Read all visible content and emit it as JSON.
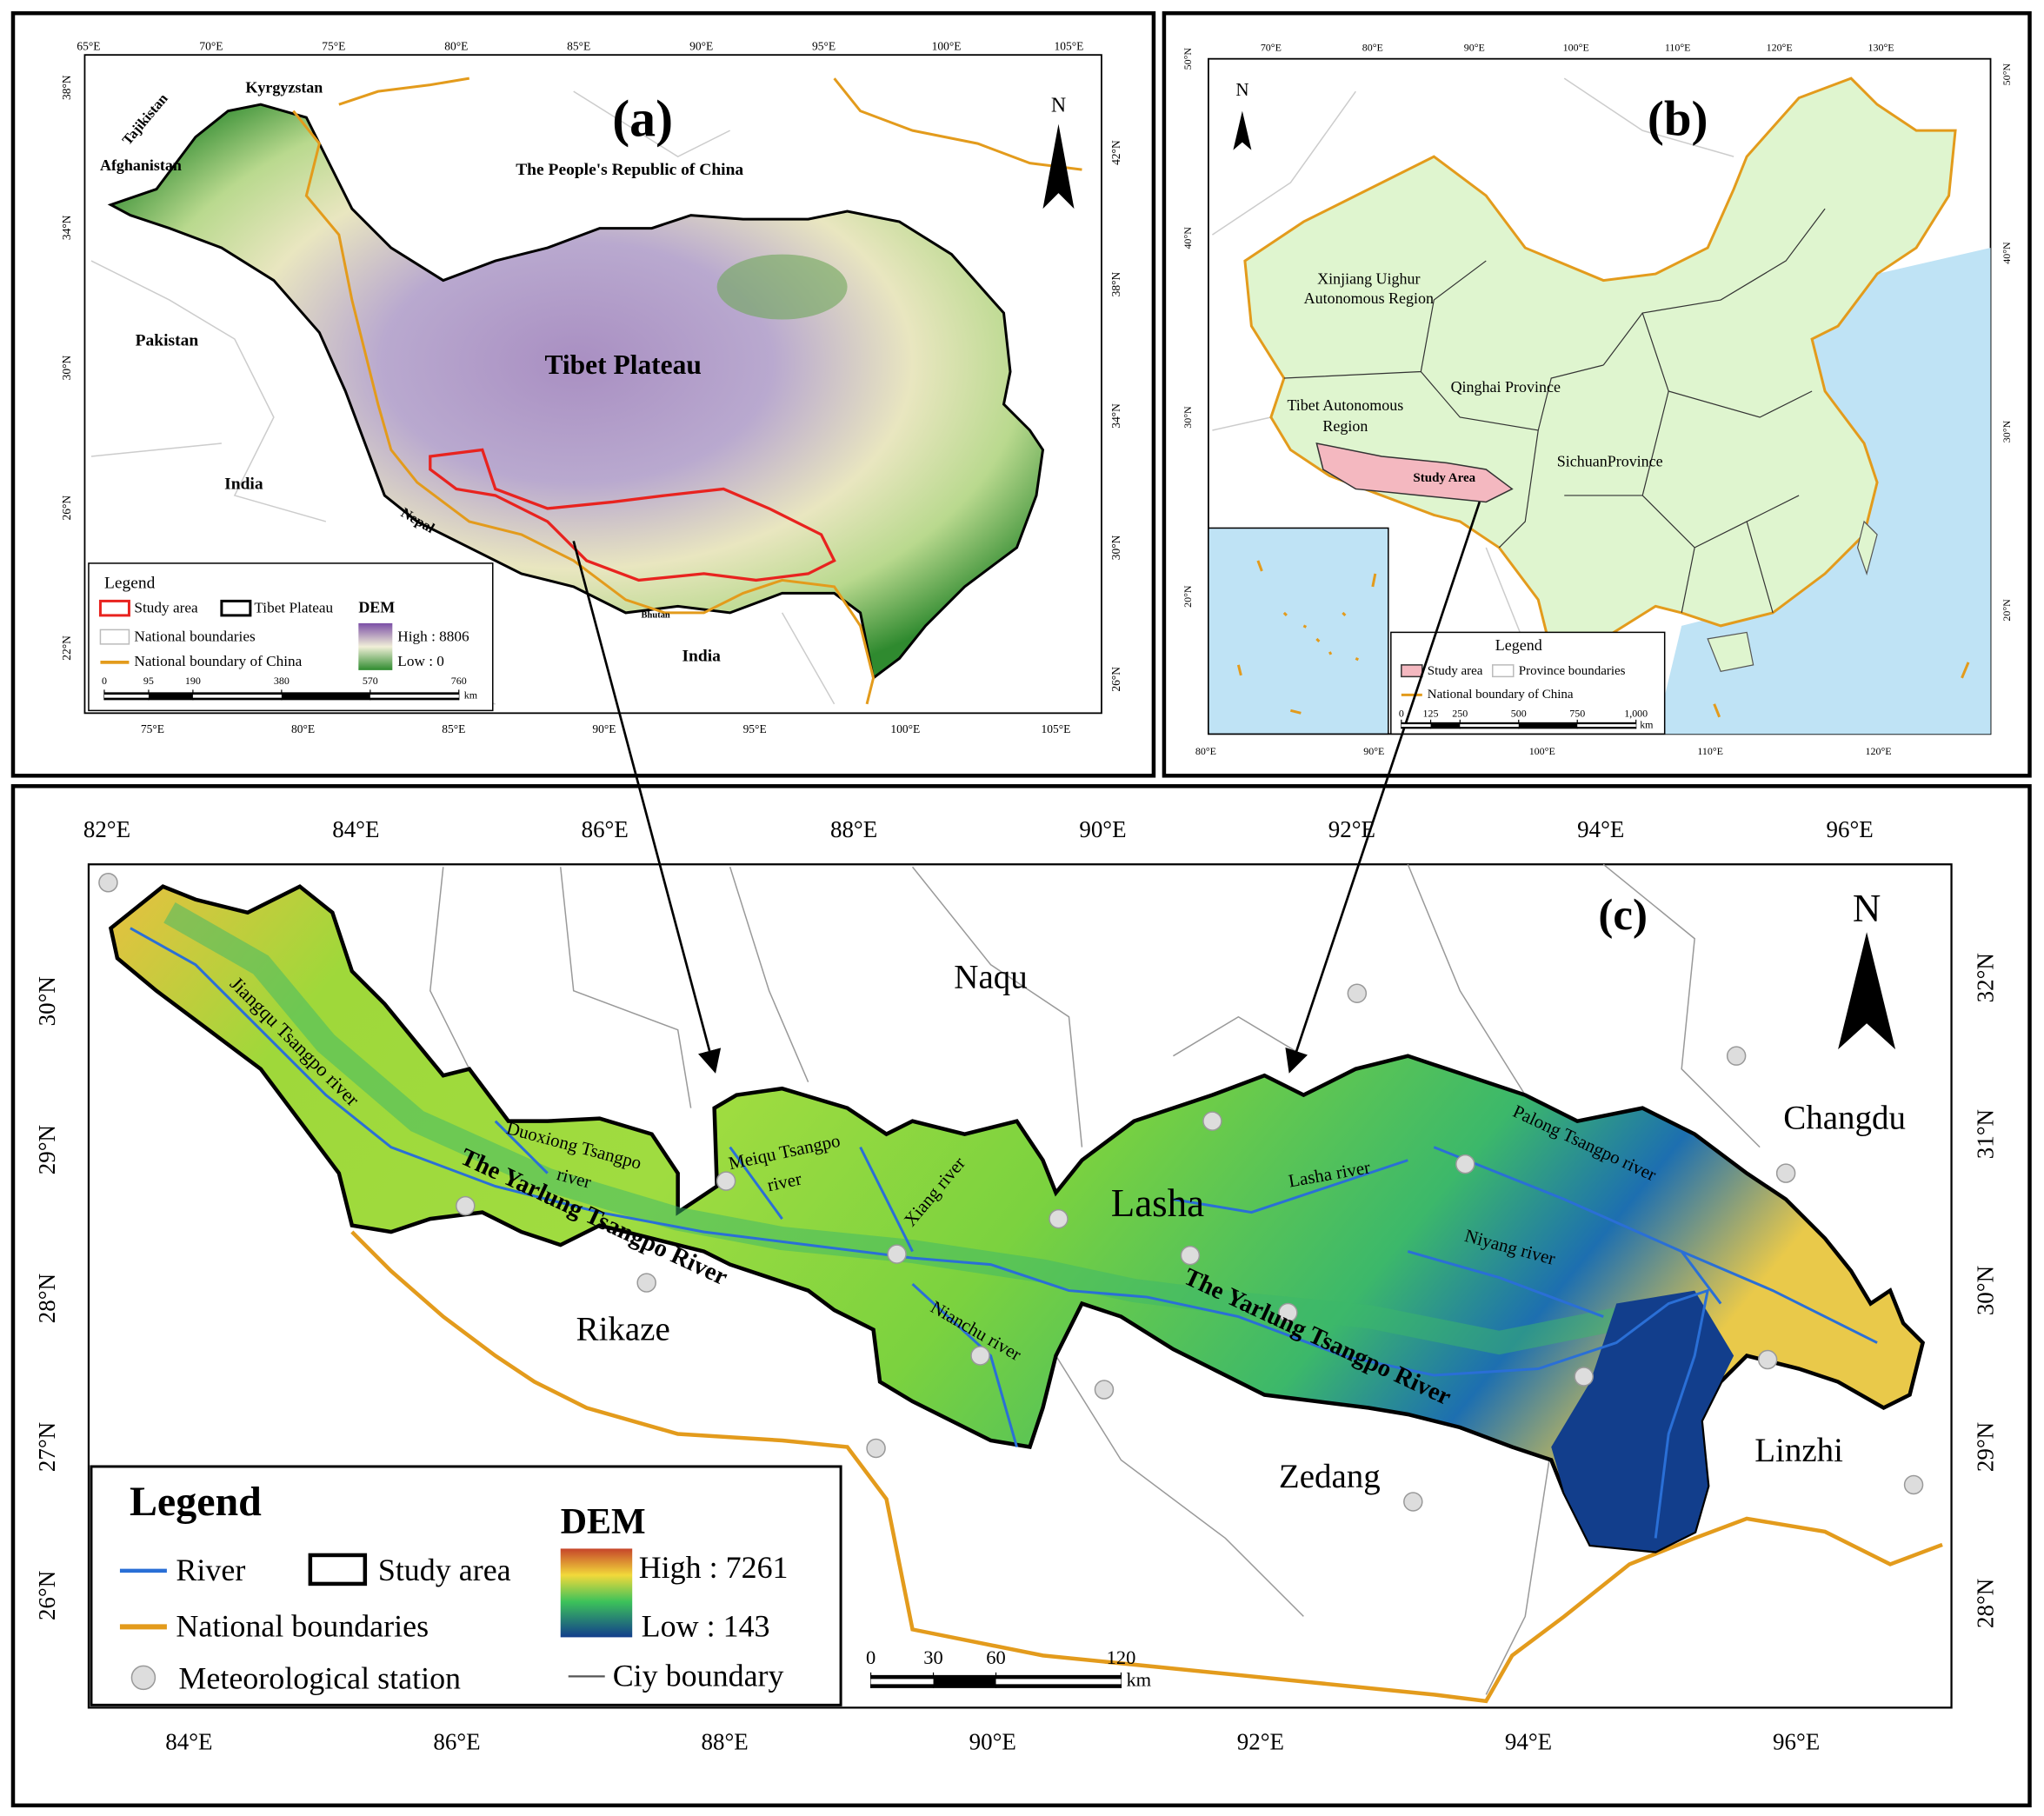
{
  "panel_a": {
    "label": "(a)",
    "north": "N",
    "top_ticks": [
      "65°E",
      "70°E",
      "75°E",
      "80°E",
      "85°E",
      "90°E",
      "95°E",
      "100°E",
      "105°E"
    ],
    "bottom_ticks": [
      "75°E",
      "80°E",
      "85°E",
      "90°E",
      "95°E",
      "100°E",
      "105°E"
    ],
    "left_ticks": [
      "38°N",
      "34°N",
      "30°N",
      "26°N",
      "22°N"
    ],
    "right_ticks": [
      "42°N",
      "38°N",
      "34°N",
      "30°N",
      "26°N"
    ],
    "places": [
      "Kyrgyzstan",
      "Tajikistan",
      "Afghanistan",
      "The People's Republic of China",
      "Pakistan",
      "Tibet Plateau",
      "India",
      "Nepal",
      "Bhutan",
      "India"
    ],
    "legend": {
      "title": "Legend",
      "items": [
        "Study area",
        "Tibet Plateau",
        "National boundaries",
        "National boundary of China"
      ],
      "dem_title": "DEM",
      "dem_high": "High : 8806",
      "dem_low": "Low : 0",
      "scale": [
        0,
        95,
        190,
        380,
        570,
        760
      ],
      "scale_unit": "km"
    }
  },
  "panel_b": {
    "label": "(b)",
    "north": "N",
    "top_ticks": [
      "70°E",
      "80°E",
      "90°E",
      "100°E",
      "110°E",
      "120°E",
      "130°E"
    ],
    "bottom_ticks": [
      "80°E",
      "90°E",
      "100°E",
      "110°E",
      "120°E"
    ],
    "left_ticks": [
      "50°N",
      "40°N",
      "30°N",
      "20°N"
    ],
    "right_ticks": [
      "50°N",
      "40°N",
      "30°N",
      "20°N"
    ],
    "places": [
      "Xinjiang Uighur",
      "Autonomous Region",
      "Tibet Autonomous",
      "Region",
      "Qinghai Province",
      "SichuanProvince",
      "Study Area"
    ],
    "legend": {
      "title": "Legend",
      "items": [
        "Study area",
        "Province boundaries",
        "National boundary of China"
      ],
      "scale": [
        0,
        125,
        250,
        500,
        750,
        {
          "value": 1000,
          "label": "1,000"
        }
      ],
      "scale_unit": "km"
    }
  },
  "panel_c": {
    "label": "(c)",
    "north": "N",
    "top_ticks": [
      "82°E",
      "84°E",
      "86°E",
      "88°E",
      "90°E",
      "92°E",
      "94°E",
      "96°E"
    ],
    "bottom_ticks": [
      "84°E",
      "86°E",
      "88°E",
      "90°E",
      "92°E",
      "94°E",
      "96°E"
    ],
    "left_ticks": [
      "30°N",
      "29°N",
      "28°N",
      "27°N",
      "26°N"
    ],
    "right_ticks": [
      "32°N",
      "31°N",
      "30°N",
      "29°N",
      "28°N"
    ],
    "places": [
      "Naqu",
      "Changdu",
      "Lasha",
      "Rikaze",
      "Zedang",
      "Linzhi"
    ],
    "rivers": [
      "Jiangqu Tsangpo river",
      "Duoxiong Tsangpo",
      "river",
      "Meiqu Tsangpo",
      "river",
      "Xiang river",
      "Lasha river",
      "Palong Tsangpo river",
      "Niyang river",
      "Nianchu river",
      "The Yarlung Tsangpo River",
      "The Yarlung Tsangpo River"
    ],
    "legend": {
      "title": "Legend",
      "items": [
        "River",
        "Study area",
        "National boundaries",
        "Meteorological station",
        "Ciy boundary"
      ],
      "dem_title": "DEM",
      "dem_high": "High : 7261",
      "dem_low": "Low : 143",
      "scale": [
        0,
        30,
        60,
        120
      ],
      "scale_unit": "km"
    }
  }
}
